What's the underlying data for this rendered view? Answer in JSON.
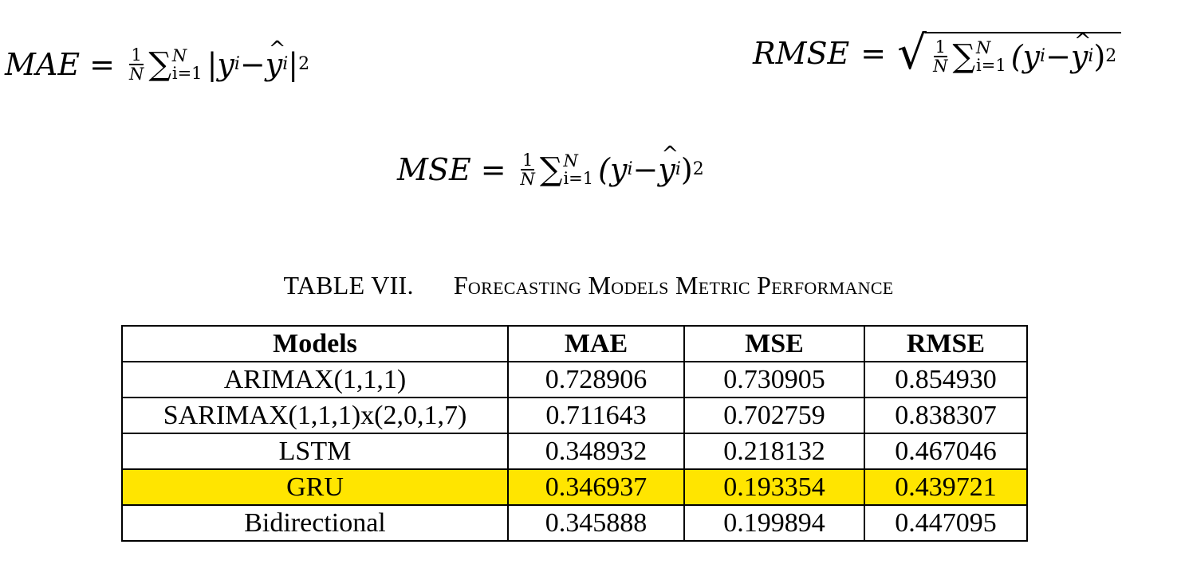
{
  "equations": {
    "mae": {
      "lhs": "MAE",
      "eq": "=",
      "num": "1",
      "den": "N",
      "sum_sup": "N",
      "sum_sub": "i=1",
      "body_open": "|y",
      "body_mid": " − ",
      "body_close": "|",
      "power": "2",
      "idx": "i"
    },
    "rmse": {
      "lhs": "RMSE",
      "eq": "=",
      "num": "1",
      "den": "N",
      "sum_sup": "N",
      "sum_sub": "i=1",
      "body_open": "(y",
      "body_mid": " − ",
      "body_close": ")",
      "power": "2",
      "idx": "i"
    },
    "mse": {
      "lhs": "MSE",
      "eq": "=",
      "num": "1",
      "den": "N",
      "sum_sup": "N",
      "sum_sub": "i=1",
      "body_open": "(y",
      "body_mid": " − ",
      "body_close": ")",
      "power": "2",
      "idx": "i"
    }
  },
  "caption": {
    "label": "TABLE VII.",
    "title": "Forecasting Models Metric Performance"
  },
  "table": {
    "headers": [
      "Models",
      "MAE",
      "MSE",
      "RMSE"
    ],
    "rows": [
      [
        "ARIMAX(1,1,1)",
        "0.728906",
        "0.730905",
        "0.854930"
      ],
      [
        "SARIMAX(1,1,1)x(2,0,1,7)",
        "0.711643",
        "0.702759",
        "0.838307"
      ],
      [
        "LSTM",
        "0.348932",
        "0.218132",
        "0.467046"
      ],
      [
        "GRU",
        "0.346937",
        "0.193354",
        "0.439721"
      ],
      [
        "Bidirectional",
        "0.345888",
        "0.199894",
        "0.447095"
      ]
    ],
    "highlight_row": 3,
    "highlight_color": "#ffe500"
  }
}
